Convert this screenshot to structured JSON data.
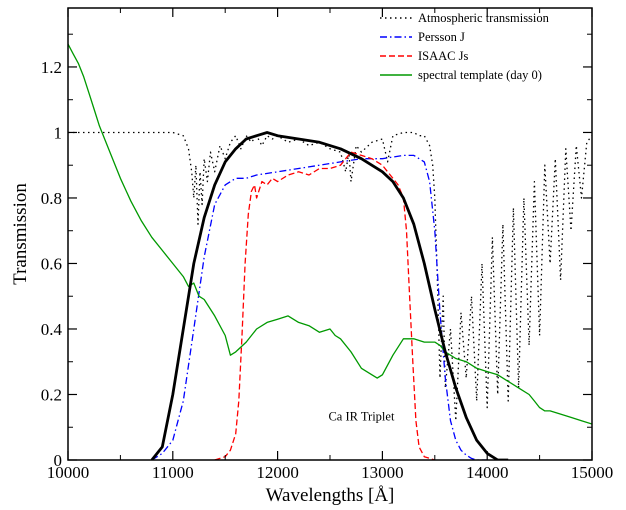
{
  "chart_data": {
    "type": "line",
    "xlabel": "Wavelengths [Å]",
    "ylabel": "Transmission",
    "xlim": [
      10000,
      15000
    ],
    "ylim": [
      0,
      1.38
    ],
    "xticks": [
      10000,
      11000,
      12000,
      13000,
      14000,
      15000
    ],
    "xtick_labels": [
      "10000",
      "11000",
      "12000",
      "13000",
      "14000",
      "15000"
    ],
    "yticks": [
      0,
      0.2,
      0.4,
      0.6,
      0.8,
      1,
      1.2
    ],
    "ytick_labels": [
      "0",
      "0.2",
      "0.4",
      "0.6",
      "0.8",
      "1",
      "1.2"
    ],
    "grid": false,
    "legend_position": "top-right",
    "annotations": [
      {
        "text": "Ca IR Triplet",
        "x": 12800,
        "y": 0.12
      }
    ],
    "series": [
      {
        "name": "Atmospheric transmission",
        "color": "#000000",
        "dash": "dotted",
        "x": [
          10000,
          10500,
          11000,
          11100,
          11150,
          11180,
          11200,
          11220,
          11240,
          11260,
          11280,
          11300,
          11330,
          11360,
          11400,
          11450,
          11500,
          11550,
          11600,
          11650,
          11700,
          11750,
          11800,
          11850,
          11900,
          11950,
          12000,
          12050,
          12100,
          12200,
          12300,
          12400,
          12500,
          12600,
          12650,
          12680,
          12700,
          12750,
          12800,
          12900,
          13000,
          13050,
          13100,
          13200,
          13300,
          13350,
          13400,
          13450,
          13480,
          13500,
          13520,
          13550,
          13580,
          13600,
          13650,
          13700,
          13750,
          13800,
          13850,
          13900,
          13950,
          14000,
          14050,
          14100,
          14150,
          14200,
          14250,
          14300,
          14350,
          14400,
          14450,
          14500,
          14550,
          14600,
          14650,
          14700,
          14750,
          14800,
          14850,
          14900,
          14950,
          15000
        ],
        "y": [
          1.0,
          1.0,
          1.0,
          0.99,
          0.95,
          0.88,
          0.8,
          0.9,
          0.72,
          0.88,
          0.78,
          0.92,
          0.85,
          0.94,
          0.88,
          0.96,
          0.92,
          0.97,
          0.99,
          0.95,
          0.99,
          0.97,
          0.99,
          0.96,
          0.99,
          0.98,
          0.99,
          0.98,
          0.97,
          0.98,
          0.96,
          0.97,
          0.95,
          0.94,
          0.88,
          0.94,
          0.85,
          0.96,
          0.94,
          0.97,
          0.98,
          0.91,
          0.99,
          1.0,
          1.0,
          0.99,
          0.99,
          0.96,
          0.9,
          0.8,
          0.6,
          0.25,
          0.5,
          0.22,
          0.4,
          0.12,
          0.45,
          0.25,
          0.5,
          0.18,
          0.6,
          0.16,
          0.68,
          0.2,
          0.72,
          0.18,
          0.77,
          0.22,
          0.8,
          0.35,
          0.85,
          0.38,
          0.9,
          0.6,
          0.92,
          0.55,
          0.95,
          0.7,
          0.96,
          0.8,
          0.97,
          0.99
        ]
      },
      {
        "name": "Persson J",
        "color": "#0000ff",
        "dash": "dashdot",
        "x": [
          10800,
          10900,
          11000,
          11100,
          11200,
          11300,
          11400,
          11500,
          11600,
          11700,
          11800,
          12000,
          12200,
          12400,
          12600,
          12800,
          13000,
          13200,
          13300,
          13400,
          13450,
          13500,
          13550,
          13600,
          13650,
          13700,
          13750,
          13800,
          13850,
          13900,
          14000
        ],
        "y": [
          0.0,
          0.02,
          0.06,
          0.18,
          0.4,
          0.62,
          0.78,
          0.84,
          0.86,
          0.86,
          0.87,
          0.88,
          0.89,
          0.9,
          0.91,
          0.92,
          0.92,
          0.93,
          0.93,
          0.91,
          0.85,
          0.7,
          0.45,
          0.25,
          0.12,
          0.06,
          0.03,
          0.015,
          0.005,
          0.0,
          0.0
        ]
      },
      {
        "name": "ISAAC Js",
        "color": "#ff0000",
        "dash": "dashed",
        "x": [
          11400,
          11500,
          11550,
          11600,
          11630,
          11660,
          11690,
          11720,
          11750,
          11780,
          11800,
          11850,
          11900,
          11950,
          12000,
          12100,
          12200,
          12300,
          12400,
          12500,
          12600,
          12700,
          12800,
          12900,
          13000,
          13050,
          13100,
          13150,
          13200,
          13230,
          13260,
          13290,
          13320,
          13350,
          13400,
          13500
        ],
        "y": [
          0.0,
          0.01,
          0.03,
          0.08,
          0.18,
          0.38,
          0.6,
          0.75,
          0.82,
          0.84,
          0.8,
          0.85,
          0.84,
          0.86,
          0.85,
          0.87,
          0.88,
          0.87,
          0.89,
          0.89,
          0.9,
          0.94,
          0.93,
          0.92,
          0.9,
          0.88,
          0.86,
          0.84,
          0.8,
          0.7,
          0.5,
          0.3,
          0.12,
          0.04,
          0.01,
          0.0
        ]
      },
      {
        "name": "spectral template (day 0)",
        "color": "#009900",
        "dash": "solid",
        "x": [
          10000,
          10050,
          10100,
          10150,
          10200,
          10250,
          10300,
          10400,
          10500,
          10600,
          10700,
          10800,
          10900,
          11000,
          11100,
          11150,
          11200,
          11250,
          11300,
          11400,
          11500,
          11550,
          11600,
          11700,
          11800,
          11900,
          12000,
          12100,
          12200,
          12300,
          12400,
          12500,
          12550,
          12600,
          12700,
          12800,
          12900,
          12950,
          13000,
          13100,
          13200,
          13300,
          13400,
          13500,
          13550,
          13600,
          13700,
          13800,
          13900,
          14000,
          14100,
          14200,
          14300,
          14400,
          14450,
          14500,
          14550,
          14600,
          14700,
          14800,
          14900,
          15000
        ],
        "y": [
          1.27,
          1.24,
          1.21,
          1.17,
          1.12,
          1.07,
          1.02,
          0.94,
          0.86,
          0.79,
          0.73,
          0.68,
          0.64,
          0.6,
          0.56,
          0.53,
          0.54,
          0.5,
          0.49,
          0.44,
          0.38,
          0.32,
          0.33,
          0.36,
          0.4,
          0.42,
          0.43,
          0.44,
          0.42,
          0.41,
          0.39,
          0.4,
          0.38,
          0.37,
          0.33,
          0.28,
          0.26,
          0.25,
          0.26,
          0.32,
          0.37,
          0.37,
          0.36,
          0.36,
          0.35,
          0.33,
          0.31,
          0.3,
          0.28,
          0.27,
          0.26,
          0.24,
          0.22,
          0.2,
          0.18,
          0.16,
          0.15,
          0.15,
          0.14,
          0.13,
          0.12,
          0.11
        ]
      },
      {
        "name": "",
        "color": "#000000",
        "dash": "solid",
        "x": [
          10800,
          10900,
          11000,
          11100,
          11200,
          11300,
          11400,
          11500,
          11600,
          11700,
          11800,
          11900,
          12000,
          12200,
          12400,
          12600,
          12800,
          13000,
          13100,
          13200,
          13300,
          13400,
          13500,
          13600,
          13700,
          13800,
          13900,
          14000,
          14100,
          14200
        ],
        "y": [
          0.0,
          0.04,
          0.2,
          0.4,
          0.6,
          0.74,
          0.84,
          0.91,
          0.95,
          0.98,
          0.99,
          1.0,
          0.99,
          0.98,
          0.97,
          0.95,
          0.92,
          0.88,
          0.85,
          0.8,
          0.72,
          0.6,
          0.46,
          0.33,
          0.22,
          0.13,
          0.06,
          0.02,
          0.0,
          0.0
        ]
      }
    ]
  }
}
